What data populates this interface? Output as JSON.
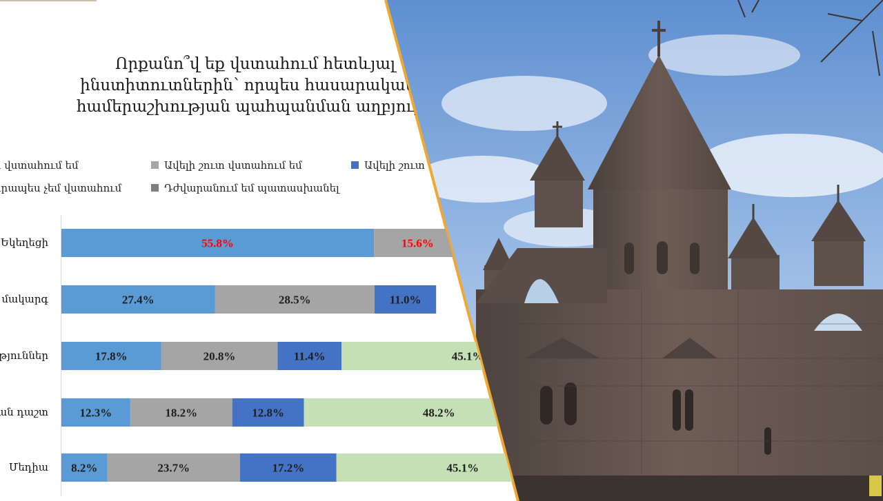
{
  "chart_data": {
    "type": "bar",
    "orientation": "horizontal",
    "stacked": true,
    "title_lines": [
      "Որքանո՞վ եք վստահում հետևյալ",
      "ինստիտուտներին՝ որպես հասարակակա",
      "համերաշխության պահպանման աղբյուրն"
    ],
    "legend": [
      {
        "label": "ն վստահում եմ",
        "color": "#5b9bd5"
      },
      {
        "label": "Ավելի շուտ վստահում եմ",
        "color": "#a5a5a5"
      },
      {
        "label": "Ավելի շուտ",
        "color": "#4472c4"
      },
      {
        "label": "նրապես չեմ վստահում",
        "color": "#c5e0b4"
      },
      {
        "label": "Դժվարանում եմ պատասխանել",
        "color": "#7f7f7f"
      }
    ],
    "categories": [
      "Եկեղեցի",
      "մակարգ",
      "թյուններ",
      "ան դաշտ",
      "Մեդիա"
    ],
    "series": [
      {
        "color": "#5b9bd5",
        "values": [
          55.8,
          27.4,
          17.8,
          12.3,
          8.2
        ]
      },
      {
        "color": "#a5a5a5",
        "values": [
          15.6,
          28.5,
          20.8,
          18.2,
          23.7
        ]
      },
      {
        "color": "#4472c4",
        "values": [
          null,
          11.0,
          11.4,
          12.8,
          17.2
        ]
      },
      {
        "color": "#c5e0b4",
        "values": [
          null,
          null,
          45.1,
          48.2,
          45.1
        ]
      }
    ],
    "value_labels": [
      [
        "55.8%",
        "15.6%",
        "",
        ""
      ],
      [
        "27.4%",
        "28.5%",
        "11.0%",
        ""
      ],
      [
        "17.8%",
        "20.8%",
        "11.4%",
        "45.1%"
      ],
      [
        "12.3%",
        "18.2%",
        "12.8%",
        "48.2%"
      ],
      [
        "8.2%",
        "23.7%",
        "17.2%",
        "45.1%"
      ]
    ],
    "highlight_labels_color": "#ff0000",
    "x_unit": "%",
    "grid": false
  },
  "photo": {
    "subject": "cathedral",
    "colors": {
      "sky": "#8fb3e0",
      "stone": "#6e5e56",
      "divider": "#f0a830"
    }
  }
}
